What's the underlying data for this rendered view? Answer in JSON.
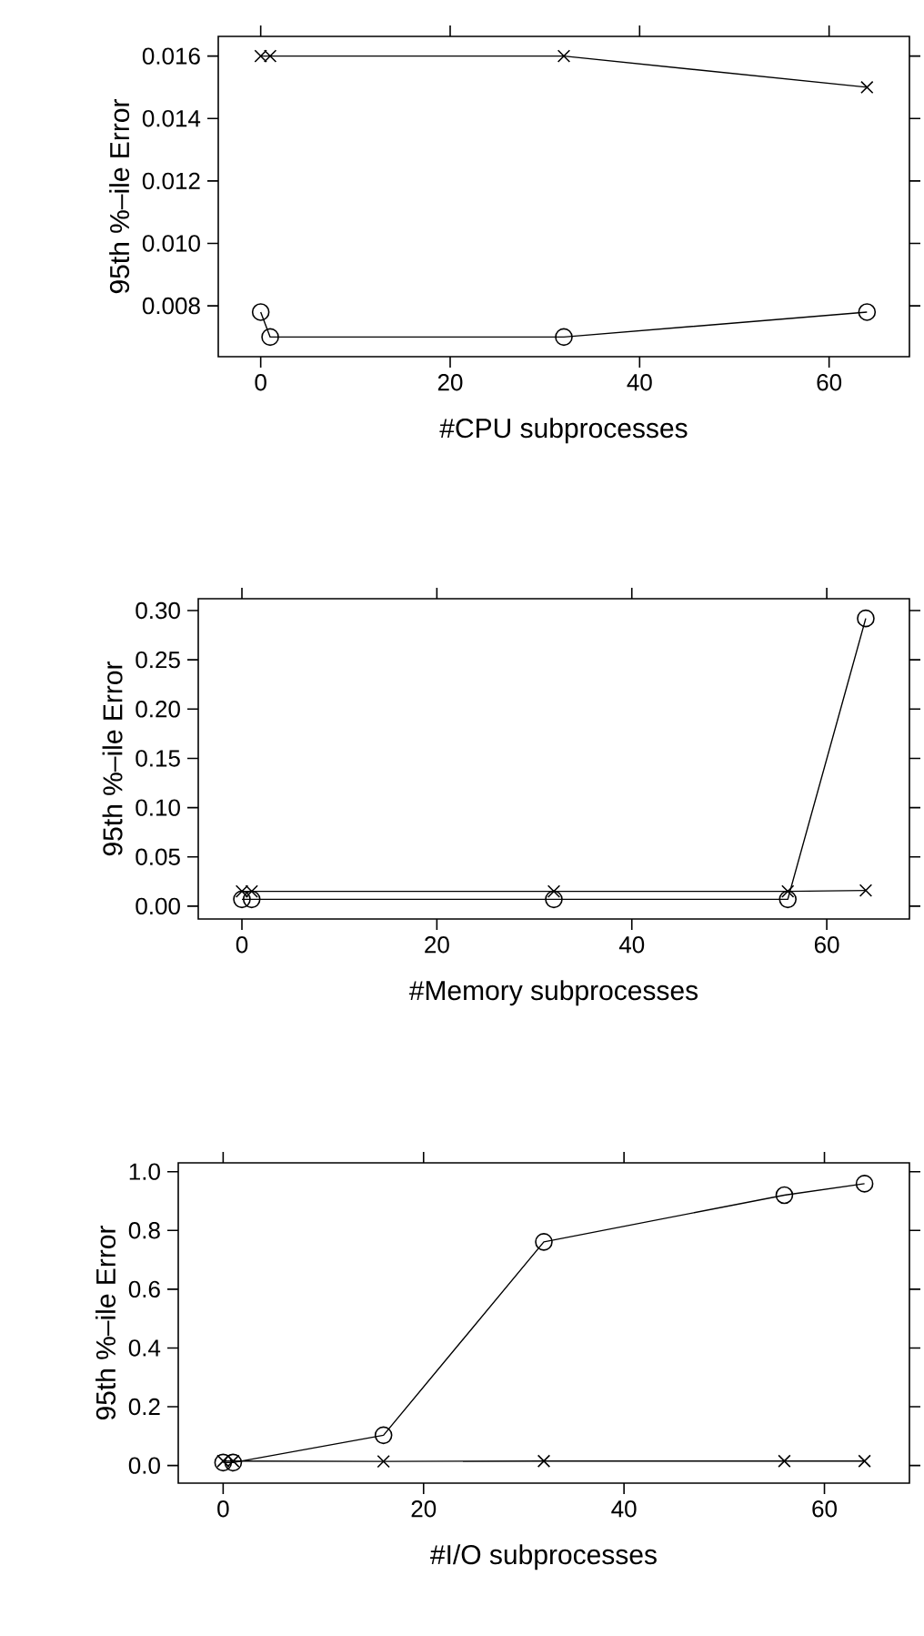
{
  "chart_data": [
    {
      "type": "line",
      "xlabel": "#CPU subprocesses",
      "ylabel": "95th %–ile Error",
      "xlim": [
        -4.48,
        68.48
      ],
      "ylim": [
        0.00637,
        0.01663
      ],
      "xticks": [
        0,
        20,
        40,
        60
      ],
      "yticks": [
        {
          "value": 0.008,
          "label": "0.008"
        },
        {
          "value": 0.01,
          "label": "0.010"
        },
        {
          "value": 0.012,
          "label": "0.012"
        },
        {
          "value": 0.014,
          "label": "0.014"
        },
        {
          "value": 0.016,
          "label": "0.016"
        }
      ],
      "series": [
        {
          "color": "#000000",
          "marker": "cross",
          "x": [
            0,
            1,
            32,
            64
          ],
          "values": [
            0.016,
            0.016,
            0.016,
            0.015
          ]
        },
        {
          "color": "#000000",
          "marker": "circle",
          "x": [
            0,
            1,
            32,
            64
          ],
          "values": [
            0.0078,
            0.007,
            0.007,
            0.0078
          ]
        }
      ]
    },
    {
      "type": "line",
      "xlabel": "#Memory subprocesses",
      "ylabel": "95th %–ile Error",
      "xlim": [
        -4.48,
        68.48
      ],
      "ylim": [
        -0.013,
        0.312
      ],
      "xticks": [
        0,
        20,
        40,
        60
      ],
      "yticks": [
        {
          "value": 0,
          "label": "0.00"
        },
        {
          "value": 0.05,
          "label": "0.05"
        },
        {
          "value": 0.1,
          "label": "0.10"
        },
        {
          "value": 0.15,
          "label": "0.15"
        },
        {
          "value": 0.2,
          "label": "0.20"
        },
        {
          "value": 0.25,
          "label": "0.25"
        },
        {
          "value": 0.3,
          "label": "0.30"
        }
      ],
      "series": [
        {
          "color": "#000000",
          "marker": "cross",
          "x": [
            0,
            1,
            32,
            56,
            64
          ],
          "values": [
            0.015,
            0.015,
            0.015,
            0.015,
            0.016
          ]
        },
        {
          "color": "#000000",
          "marker": "circle",
          "x": [
            0,
            1,
            32,
            56,
            64
          ],
          "values": [
            0.007,
            0.007,
            0.007,
            0.007,
            0.292
          ]
        }
      ]
    },
    {
      "type": "line",
      "xlabel": "#I/O subprocesses",
      "ylabel": "95th %–ile Error",
      "xlim": [
        -4.48,
        68.48
      ],
      "ylim": [
        -0.06,
        1.03
      ],
      "xticks": [
        0,
        20,
        40,
        60
      ],
      "yticks": [
        {
          "value": 0,
          "label": "0.0"
        },
        {
          "value": 0.2,
          "label": "0.2"
        },
        {
          "value": 0.4,
          "label": "0.4"
        },
        {
          "value": 0.6,
          "label": "0.6"
        },
        {
          "value": 0.8,
          "label": "0.8"
        },
        {
          "value": 1,
          "label": "1.0"
        }
      ],
      "series": [
        {
          "color": "#000000",
          "marker": "cross",
          "x": [
            0,
            1,
            16,
            32,
            56,
            64
          ],
          "values": [
            0.015,
            0.015,
            0.014,
            0.015,
            0.015,
            0.015
          ]
        },
        {
          "color": "#000000",
          "marker": "circle",
          "x": [
            0,
            1,
            16,
            32,
            56,
            64
          ],
          "values": [
            0.01,
            0.01,
            0.103,
            0.761,
            0.92,
            0.959
          ]
        }
      ]
    }
  ]
}
